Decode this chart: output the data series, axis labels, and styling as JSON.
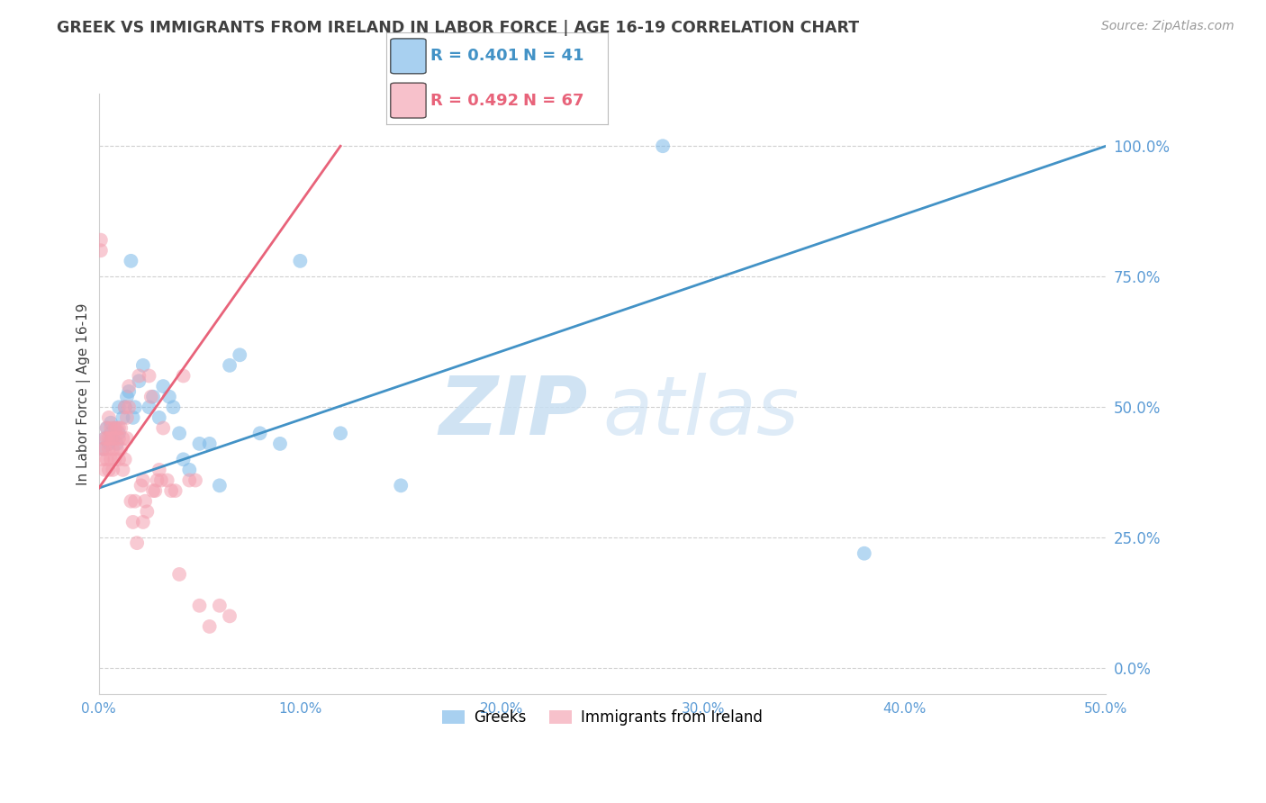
{
  "title": "GREEK VS IMMIGRANTS FROM IRELAND IN LABOR FORCE | AGE 16-19 CORRELATION CHART",
  "source": "Source: ZipAtlas.com",
  "ylabel": "In Labor Force | Age 16-19",
  "xlabel": "",
  "xlim_min": 0.0,
  "xlim_max": 0.5,
  "ylim_min": -0.05,
  "ylim_max": 1.1,
  "xtick_vals": [
    0.0,
    0.1,
    0.2,
    0.3,
    0.4,
    0.5
  ],
  "xtick_labels": [
    "0.0%",
    "10.0%",
    "20.0%",
    "30.0%",
    "40.0%",
    "50.0%"
  ],
  "ytick_vals": [
    0.0,
    0.25,
    0.5,
    0.75,
    1.0
  ],
  "ytick_labels": [
    "0.0%",
    "25.0%",
    "50.0%",
    "75.0%",
    "100.0%"
  ],
  "blue_color": "#7ab8e8",
  "pink_color": "#f4a0b0",
  "blue_line_color": "#4292c6",
  "pink_line_color": "#e8637a",
  "title_color": "#404040",
  "axis_tick_color": "#5b9bd5",
  "grid_color": "#d0d0d0",
  "legend_R_blue": "R = 0.401",
  "legend_N_blue": "N = 41",
  "legend_R_pink": "R = 0.492",
  "legend_N_pink": "N = 67",
  "blue_scatter_x": [
    0.002,
    0.003,
    0.004,
    0.005,
    0.006,
    0.006,
    0.007,
    0.008,
    0.009,
    0.01,
    0.01,
    0.012,
    0.013,
    0.014,
    0.015,
    0.016,
    0.017,
    0.018,
    0.02,
    0.022,
    0.025,
    0.027,
    0.03,
    0.032,
    0.035,
    0.037,
    0.04,
    0.042,
    0.045,
    0.05,
    0.055,
    0.06,
    0.065,
    0.07,
    0.08,
    0.09,
    0.1,
    0.12,
    0.15,
    0.28,
    0.38
  ],
  "blue_scatter_y": [
    0.42,
    0.44,
    0.46,
    0.43,
    0.45,
    0.47,
    0.44,
    0.46,
    0.43,
    0.45,
    0.5,
    0.48,
    0.5,
    0.52,
    0.53,
    0.78,
    0.48,
    0.5,
    0.55,
    0.58,
    0.5,
    0.52,
    0.48,
    0.54,
    0.52,
    0.5,
    0.45,
    0.4,
    0.38,
    0.43,
    0.43,
    0.35,
    0.58,
    0.6,
    0.45,
    0.43,
    0.78,
    0.45,
    0.35,
    1.0,
    0.22
  ],
  "pink_scatter_x": [
    0.001,
    0.001,
    0.002,
    0.002,
    0.003,
    0.003,
    0.003,
    0.004,
    0.004,
    0.004,
    0.005,
    0.005,
    0.005,
    0.005,
    0.006,
    0.006,
    0.006,
    0.007,
    0.007,
    0.007,
    0.008,
    0.008,
    0.008,
    0.009,
    0.009,
    0.01,
    0.01,
    0.01,
    0.011,
    0.011,
    0.012,
    0.012,
    0.013,
    0.013,
    0.014,
    0.014,
    0.015,
    0.015,
    0.016,
    0.017,
    0.018,
    0.019,
    0.02,
    0.021,
    0.022,
    0.022,
    0.023,
    0.024,
    0.025,
    0.026,
    0.027,
    0.028,
    0.029,
    0.03,
    0.031,
    0.032,
    0.034,
    0.036,
    0.038,
    0.04,
    0.042,
    0.045,
    0.048,
    0.05,
    0.055,
    0.06,
    0.065
  ],
  "pink_scatter_y": [
    0.8,
    0.82,
    0.4,
    0.42,
    0.38,
    0.42,
    0.44,
    0.4,
    0.44,
    0.46,
    0.38,
    0.42,
    0.44,
    0.48,
    0.4,
    0.44,
    0.46,
    0.38,
    0.42,
    0.44,
    0.4,
    0.44,
    0.46,
    0.42,
    0.46,
    0.4,
    0.44,
    0.46,
    0.42,
    0.46,
    0.38,
    0.44,
    0.4,
    0.5,
    0.44,
    0.48,
    0.5,
    0.54,
    0.32,
    0.28,
    0.32,
    0.24,
    0.56,
    0.35,
    0.36,
    0.28,
    0.32,
    0.3,
    0.56,
    0.52,
    0.34,
    0.34,
    0.36,
    0.38,
    0.36,
    0.46,
    0.36,
    0.34,
    0.34,
    0.18,
    0.56,
    0.36,
    0.36,
    0.12,
    0.08,
    0.12,
    0.1
  ],
  "blue_trend_x": [
    0.0,
    0.5
  ],
  "blue_trend_y": [
    0.345,
    1.0
  ],
  "pink_trend_x": [
    0.0,
    0.12
  ],
  "pink_trend_y": [
    0.345,
    1.0
  ]
}
